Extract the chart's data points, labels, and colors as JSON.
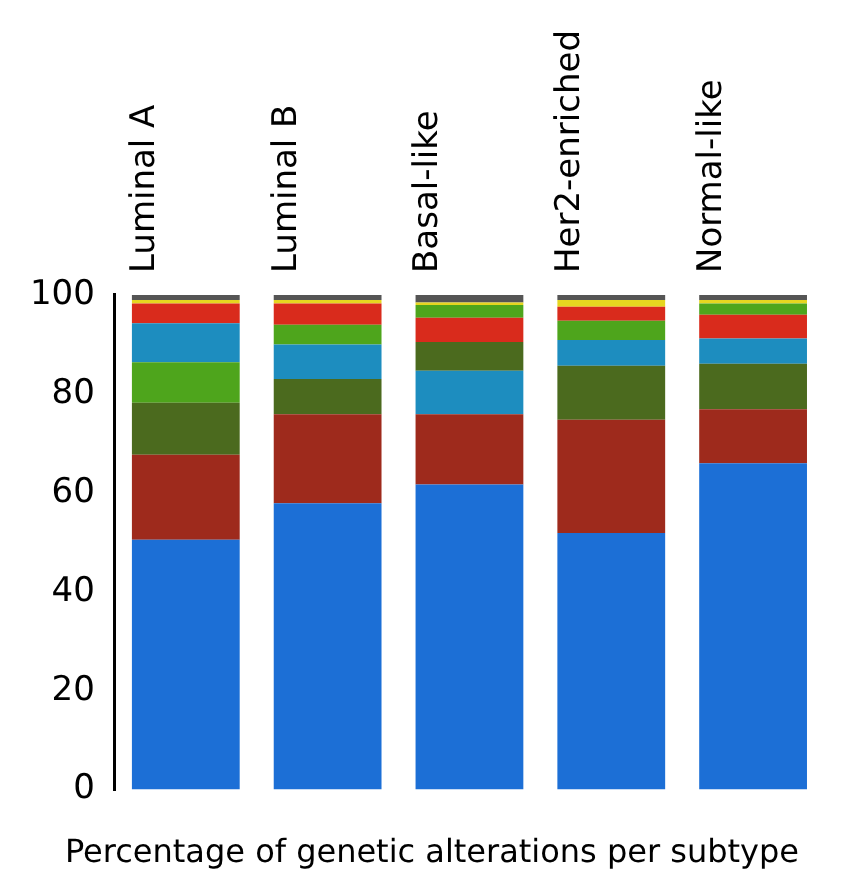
{
  "chart_data": {
    "type": "bar",
    "stacked": true,
    "xlabel": "Percentage of genetic alterations per subtype",
    "categories": [
      "Luminal A",
      "Luminal B",
      "Basal-like",
      "Her2-enriched",
      "Normal-like"
    ],
    "ylim": [
      0,
      100
    ],
    "yticks": [
      0,
      20,
      40,
      60,
      80,
      100
    ],
    "grid": false,
    "legend": false,
    "series": [
      {
        "values": [
          50.5,
          57.9,
          61.7,
          51.9,
          66
        ],
        "colors": [
          "#1c6fd6",
          "#1c6fd6",
          "#1c6fd6",
          "#1c6fd6",
          "#1c6fd6"
        ]
      },
      {
        "values": [
          17.2,
          18,
          14.2,
          22.9,
          10.9
        ],
        "colors": [
          "#9e2a1c",
          "#9e2a1c",
          "#9e2a1c",
          "#9e2a1c",
          "#9e2a1c"
        ]
      },
      {
        "values": [
          10.5,
          7.1,
          8.8,
          10.9,
          9.2
        ],
        "colors": [
          "#4b6a1e",
          "#4b6a1e",
          "#1d8dbf",
          "#4b6a1e",
          "#4b6a1e"
        ]
      },
      {
        "values": [
          8.2,
          7,
          5.8,
          5.2,
          5.1
        ],
        "colors": [
          "#4ea51c",
          "#1d8dbf",
          "#4b6a1e",
          "#1d8dbf",
          "#1d8dbf"
        ]
      },
      {
        "values": [
          7.9,
          4,
          4.9,
          3.9,
          4.8
        ],
        "colors": [
          "#1d8dbf",
          "#4ea51c",
          "#d92b1c",
          "#4ea51c",
          "#d92b1c"
        ]
      },
      {
        "values": [
          4,
          4.3,
          2.6,
          2.8,
          2.3
        ],
        "colors": [
          "#d92b1c",
          "#d92b1c",
          "#4ea51c",
          "#d92b1c",
          "#4ea51c"
        ]
      },
      {
        "values": [
          0.7,
          0.7,
          0.5,
          1.4,
          0.7
        ],
        "colors": [
          "#e6d620",
          "#e6d620",
          "#e6d620",
          "#e6d620",
          "#e6d620"
        ]
      },
      {
        "values": [
          1,
          1,
          1.5,
          1,
          1
        ],
        "colors": [
          "#555555",
          "#555555",
          "#555555",
          "#555555",
          "#555555"
        ]
      }
    ]
  }
}
